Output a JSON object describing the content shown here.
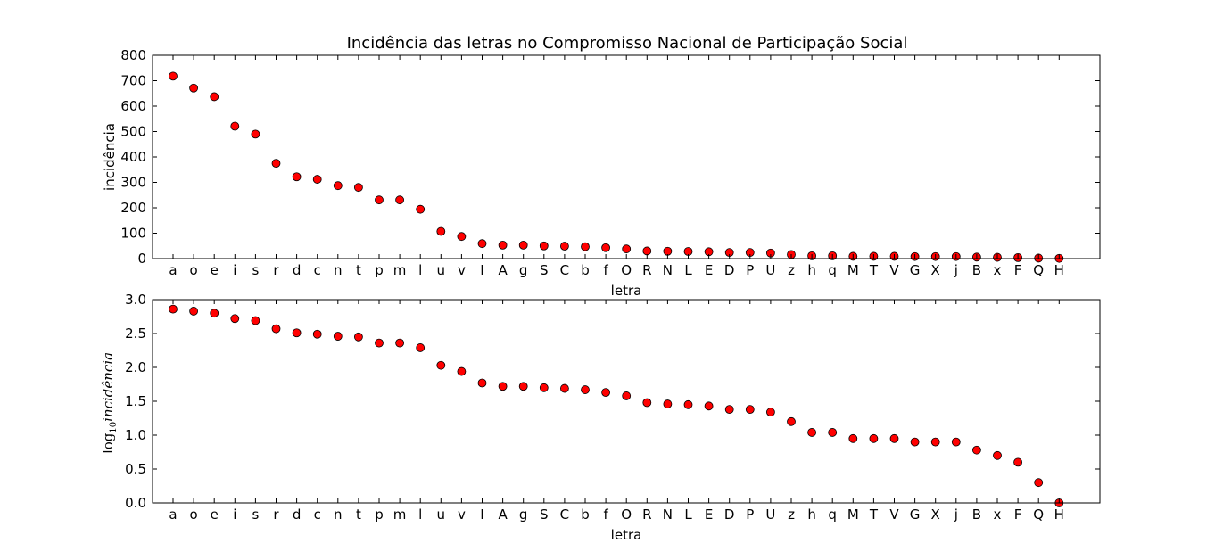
{
  "chart_data": [
    {
      "type": "scatter",
      "title": "Incidência das letras no Compromisso Nacional de Participação Social",
      "xlabel": "letra",
      "ylabel": "incidência",
      "ylim": [
        0,
        800
      ],
      "yticks": [
        "0",
        "100",
        "200",
        "300",
        "400",
        "500",
        "600",
        "700",
        "800"
      ],
      "categories": [
        "a",
        "o",
        "e",
        "i",
        "s",
        "r",
        "d",
        "c",
        "n",
        "t",
        "p",
        "m",
        "l",
        "u",
        "v",
        "I",
        "A",
        "g",
        "S",
        "C",
        "b",
        "f",
        "O",
        "R",
        "N",
        "L",
        "E",
        "D",
        "P",
        "U",
        "z",
        "h",
        "q",
        "M",
        "T",
        "V",
        "G",
        "X",
        "j",
        "B",
        "x",
        "F",
        "Q",
        "H"
      ],
      "values": [
        718,
        671,
        637,
        521,
        490,
        375,
        322,
        312,
        287,
        280,
        231,
        231,
        194,
        107,
        87,
        59,
        53,
        53,
        50,
        49,
        47,
        43,
        38,
        30,
        29,
        28,
        27,
        24,
        24,
        22,
        16,
        11,
        11,
        9,
        9,
        9,
        8,
        8,
        8,
        6,
        5,
        4,
        2,
        1
      ],
      "marker_color": "#ff0000",
      "grid": false
    },
    {
      "type": "scatter",
      "xlabel": "letra",
      "ylabel": {
        "prefix": "log",
        "subscript": "10",
        "text": "incidência"
      },
      "ylim": [
        0,
        3.0
      ],
      "yticks": [
        "0.0",
        "0.5",
        "1.0",
        "1.5",
        "2.0",
        "2.5",
        "3.0"
      ],
      "categories": [
        "a",
        "o",
        "e",
        "i",
        "s",
        "r",
        "d",
        "c",
        "n",
        "t",
        "p",
        "m",
        "l",
        "u",
        "v",
        "I",
        "A",
        "g",
        "S",
        "C",
        "b",
        "f",
        "O",
        "R",
        "N",
        "L",
        "E",
        "D",
        "P",
        "U",
        "z",
        "h",
        "q",
        "M",
        "T",
        "V",
        "G",
        "X",
        "j",
        "B",
        "x",
        "F",
        "Q",
        "H"
      ],
      "values": [
        2.86,
        2.83,
        2.8,
        2.72,
        2.69,
        2.57,
        2.51,
        2.49,
        2.46,
        2.45,
        2.36,
        2.36,
        2.29,
        2.03,
        1.94,
        1.77,
        1.72,
        1.72,
        1.7,
        1.69,
        1.67,
        1.63,
        1.58,
        1.48,
        1.46,
        1.45,
        1.43,
        1.38,
        1.38,
        1.34,
        1.2,
        1.04,
        1.04,
        0.95,
        0.95,
        0.95,
        0.9,
        0.9,
        0.9,
        0.78,
        0.7,
        0.6,
        0.3,
        0.0
      ],
      "marker_color": "#ff0000",
      "grid": false
    }
  ]
}
